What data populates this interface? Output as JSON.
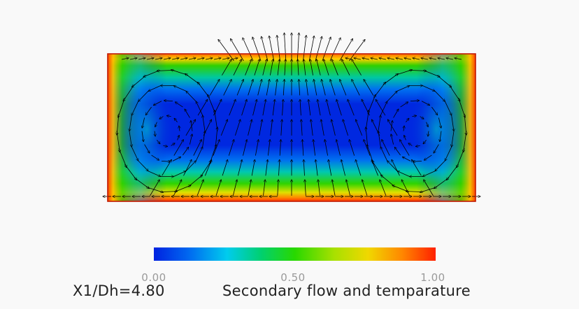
{
  "colors": {
    "background": "#f9f9f9",
    "vector": "#000000",
    "wall": "#e02000",
    "colormap": [
      "#0022e0",
      "#0066f0",
      "#00ccee",
      "#00d070",
      "#28d800",
      "#a8e000",
      "#f0d800",
      "#ff8800",
      "#ff2000"
    ]
  },
  "colorbar": {
    "ticks": [
      {
        "value": 0.0,
        "label": "0.00"
      },
      {
        "value": 0.5,
        "label": "0.50"
      },
      {
        "value": 1.0,
        "label": "1.00"
      }
    ]
  },
  "captions": {
    "location": "X1/Dh=4.80",
    "title": "Secondary flow and temparature"
  },
  "icons": [
    "vector-arrow-icon"
  ]
}
